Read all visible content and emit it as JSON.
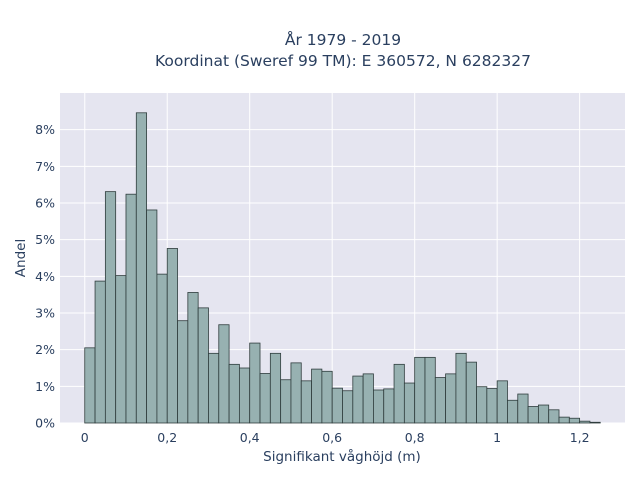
{
  "chart_data": {
    "type": "bar",
    "title_line1": "År 1979 - 2019",
    "title_line2": "Koordinat (Sweref 99 TM): E 360572, N 6282327",
    "xlabel": "Signifikant våghöjd (m)",
    "ylabel": "Andel",
    "bin_width": 0.025,
    "x_start": 0.0,
    "xlim": [
      -0.06,
      1.31
    ],
    "ylim": [
      0,
      9.0
    ],
    "x_ticks": [
      {
        "value": 0,
        "label": "0"
      },
      {
        "value": 0.2,
        "label": "0,2"
      },
      {
        "value": 0.4,
        "label": "0,4"
      },
      {
        "value": 0.6,
        "label": "0,6"
      },
      {
        "value": 0.8,
        "label": "0,8"
      },
      {
        "value": 1.0,
        "label": "1"
      },
      {
        "value": 1.2,
        "label": "1,2"
      }
    ],
    "y_ticks": [
      {
        "value": 0,
        "label": "0%"
      },
      {
        "value": 1,
        "label": "1%"
      },
      {
        "value": 2,
        "label": "2%"
      },
      {
        "value": 3,
        "label": "3%"
      },
      {
        "value": 4,
        "label": "4%"
      },
      {
        "value": 5,
        "label": "5%"
      },
      {
        "value": 6,
        "label": "6%"
      },
      {
        "value": 7,
        "label": "7%"
      },
      {
        "value": 8,
        "label": "8%"
      }
    ],
    "values": [
      2.05,
      3.87,
      6.31,
      4.02,
      6.24,
      8.46,
      5.81,
      4.06,
      4.76,
      2.79,
      3.56,
      3.14,
      1.9,
      2.68,
      1.6,
      1.5,
      2.18,
      1.35,
      1.9,
      1.18,
      1.64,
      1.15,
      1.47,
      1.41,
      0.95,
      0.88,
      1.28,
      1.34,
      0.9,
      0.93,
      1.6,
      1.09,
      1.79,
      1.79,
      1.24,
      1.34,
      1.9,
      1.66,
      0.99,
      0.94,
      1.15,
      0.62,
      0.79,
      0.45,
      0.49,
      0.36,
      0.16,
      0.13,
      0.05,
      0.02
    ],
    "grid": true,
    "colors": {
      "bar_fill": "#97b1b1",
      "bar_stroke": "#2f3d3d",
      "plot_background": "#e5e5f0",
      "grid": "#ffffff",
      "text": "#2a3f5f"
    }
  }
}
